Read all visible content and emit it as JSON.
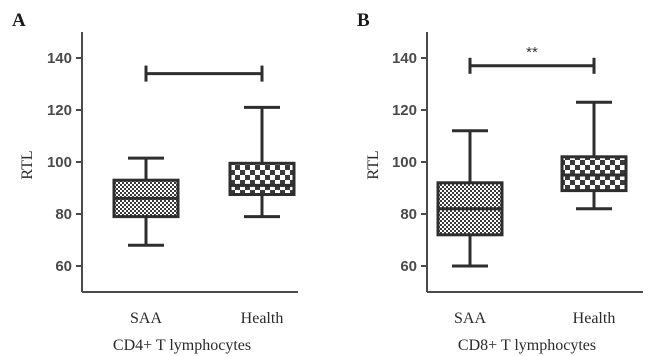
{
  "colors": {
    "axis": "#4a4a4a",
    "box_stroke": "#2e2e2e",
    "pattern_dark": "#3a3a3a",
    "pattern_light": "#ffffff",
    "whisker": "#2e2e2e",
    "bracket": "#2e2e2e"
  },
  "chart_data": [
    {
      "type": "box",
      "panel": "A",
      "xlabel": "CD4+ T lymphocytes",
      "ylabel": "RTL",
      "ylim": [
        50,
        150
      ],
      "yticks": [
        60,
        80,
        100,
        120,
        140
      ],
      "grid": false,
      "categories": [
        "SAA",
        "Health"
      ],
      "boxes": [
        {
          "category": "SAA",
          "min": 68,
          "q1": 79,
          "median": 86,
          "q3": 93,
          "max": 101.5,
          "pattern": "dense"
        },
        {
          "category": "Health",
          "min": 79,
          "q1": 87.5,
          "median": 91,
          "q3": 99.5,
          "max": 121,
          "pattern": "checker"
        }
      ],
      "comparison": {
        "from": "SAA",
        "to": "Health",
        "y": 134,
        "label": ""
      }
    },
    {
      "type": "box",
      "panel": "B",
      "xlabel": "CD8+ T lymphocytes",
      "ylabel": "RTL",
      "ylim": [
        50,
        150
      ],
      "yticks": [
        60,
        80,
        100,
        120,
        140
      ],
      "grid": false,
      "categories": [
        "SAA",
        "Health"
      ],
      "boxes": [
        {
          "category": "SAA",
          "min": 60,
          "q1": 72,
          "median": 82,
          "q3": 92,
          "max": 112,
          "pattern": "dense"
        },
        {
          "category": "Health",
          "min": 82,
          "q1": 89,
          "median": 95,
          "q3": 102,
          "max": 123,
          "pattern": "checker"
        }
      ],
      "comparison": {
        "from": "SAA",
        "to": "Health",
        "y": 137,
        "label": "**"
      }
    }
  ]
}
